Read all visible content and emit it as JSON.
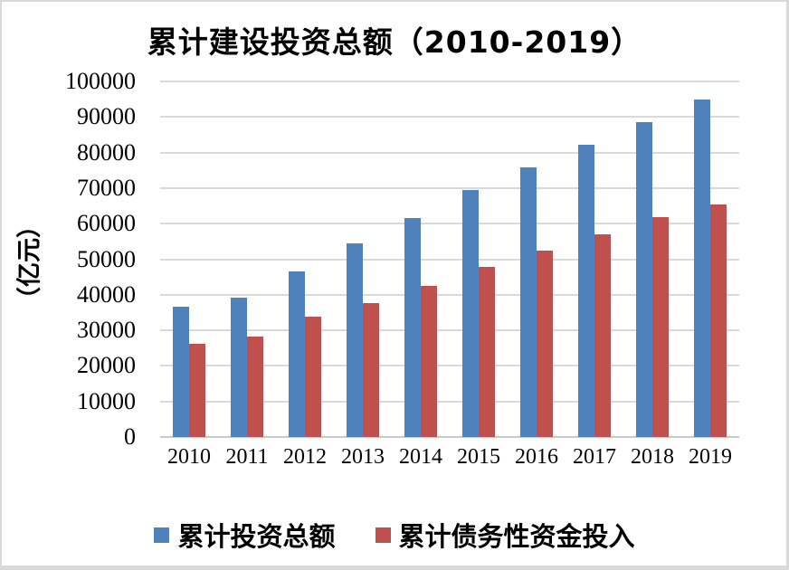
{
  "title": "累计建设投资总额（2010-2019）",
  "chart_data": {
    "type": "bar",
    "title": "累计建设投资总额（2010-2019）",
    "xlabel": "",
    "ylabel": "（亿元）",
    "categories": [
      "2010",
      "2011",
      "2012",
      "2013",
      "2014",
      "2015",
      "2016",
      "2017",
      "2018",
      "2019"
    ],
    "series": [
      {
        "name": "累计投资总额",
        "color": "#4F81BD",
        "values": [
          36600,
          39100,
          46600,
          54400,
          61600,
          69500,
          75900,
          82300,
          88600,
          95000
        ]
      },
      {
        "name": "累计债务性资金投入",
        "color": "#C0504D",
        "values": [
          26100,
          28200,
          33900,
          37600,
          42600,
          47800,
          52400,
          56900,
          61900,
          65400
        ]
      }
    ],
    "ylim": [
      0,
      100000
    ],
    "yticks": [
      0,
      10000,
      20000,
      30000,
      40000,
      50000,
      60000,
      70000,
      80000,
      90000,
      100000
    ],
    "grid": true,
    "legend_position": "bottom"
  },
  "colors": {
    "series_blue": "#4F81BD",
    "series_red": "#C0504D",
    "gridline": "#D9D9D9",
    "axis_line": "#C9C9C9",
    "frame_border": "#D9D9D9",
    "text": "#000000",
    "background": "#FFFFFF"
  }
}
